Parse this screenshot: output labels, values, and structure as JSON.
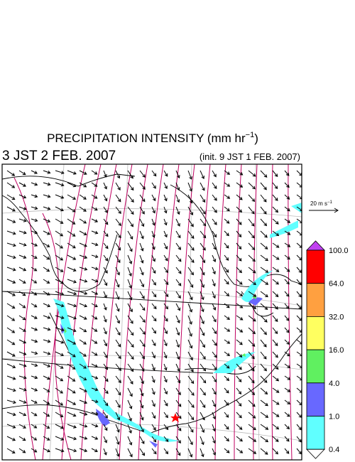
{
  "header": {
    "title": {
      "main": "PRECIPITATION INTENSITY (mm hr",
      "sup": "−1",
      "end": ")"
    },
    "valid_time": "3 JST 2 FEB. 2007",
    "init_time": "(init. 9 JST 1 FEB. 2007)"
  },
  "wind_legend": {
    "main": "20 m s",
    "sup": "−1"
  },
  "colorbar": {
    "over_color": "#c040f0",
    "under_color": "#ffffff",
    "colors": [
      "#ff0000",
      "#ffa040",
      "#ffff60",
      "#60f060",
      "#6868ff",
      "#60ffff"
    ],
    "labels": [
      "100.0",
      "64.0",
      "32.0",
      "16.0",
      "4.0",
      "1.0",
      "0.4"
    ]
  }
}
